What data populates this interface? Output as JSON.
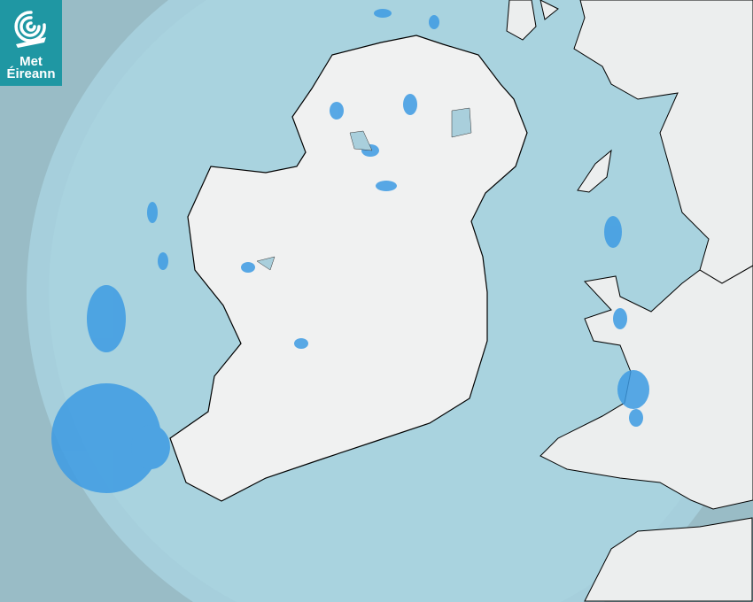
{
  "logo": {
    "line1": "Met",
    "line2": "Éireann"
  },
  "map": {
    "type": "rainfall radar",
    "colors": {
      "outside_range": "#99bcc6",
      "sea": "#a9d2de",
      "land": "#eef0f0",
      "rain_light": "#4aa3e8",
      "rain_moderate": "#2a86c8",
      "border": "#000000",
      "brand": "#1f97a3"
    }
  }
}
